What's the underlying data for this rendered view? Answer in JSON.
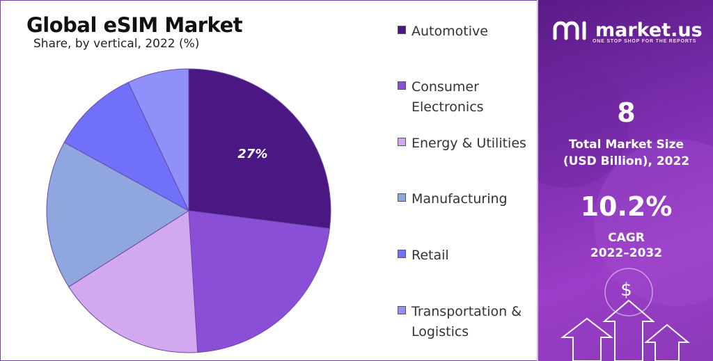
{
  "chart_data": {
    "type": "pie",
    "title": "Global eSIM Market",
    "subtitle": "Share, by vertical, 2022 (%)",
    "slices": [
      {
        "label": "Automotive",
        "value": 27,
        "color": "#4b1883",
        "show_label": true,
        "label_text": "27%"
      },
      {
        "label": "Consumer Electronics",
        "value": 22,
        "color": "#8a4fd6",
        "show_label": false
      },
      {
        "label": "Energy & Utilities",
        "value": 17,
        "color": "#d2a8ee",
        "show_label": false
      },
      {
        "label": "Manufacturing",
        "value": 17,
        "color": "#8fa6de",
        "show_label": false
      },
      {
        "label": "Retail",
        "value": 10,
        "color": "#7070f8",
        "show_label": false
      },
      {
        "label": "Transportation & Logistics",
        "value": 7,
        "color": "#9090fa",
        "show_label": false
      }
    ]
  },
  "legend": [
    {
      "line1": "Automotive",
      "line2": "",
      "color": "#4b1883"
    },
    {
      "line1": "Consumer",
      "line2": "Electronics",
      "color": "#8a4fd6"
    },
    {
      "line1": "Energy & Utilities",
      "line2": "",
      "color": "#d2a8ee"
    },
    {
      "line1": "Manufacturing",
      "line2": "",
      "color": "#8fa6de"
    },
    {
      "line1": "Retail",
      "line2": "",
      "color": "#7070f8"
    },
    {
      "line1": "Transportation &",
      "line2": "Logistics",
      "color": "#9090fa"
    }
  ],
  "panel": {
    "brand": "market.us",
    "tagline": "ONE STOP SHOP FOR THE REPORTS",
    "market_size_value": "8",
    "market_size_label1": "Total Market Size",
    "market_size_label2": "(USD Billion), 2022",
    "cagr_value": "10.2%",
    "cagr_label1": "CAGR",
    "cagr_label2": "2022–2032",
    "dollar_symbol": "$"
  }
}
